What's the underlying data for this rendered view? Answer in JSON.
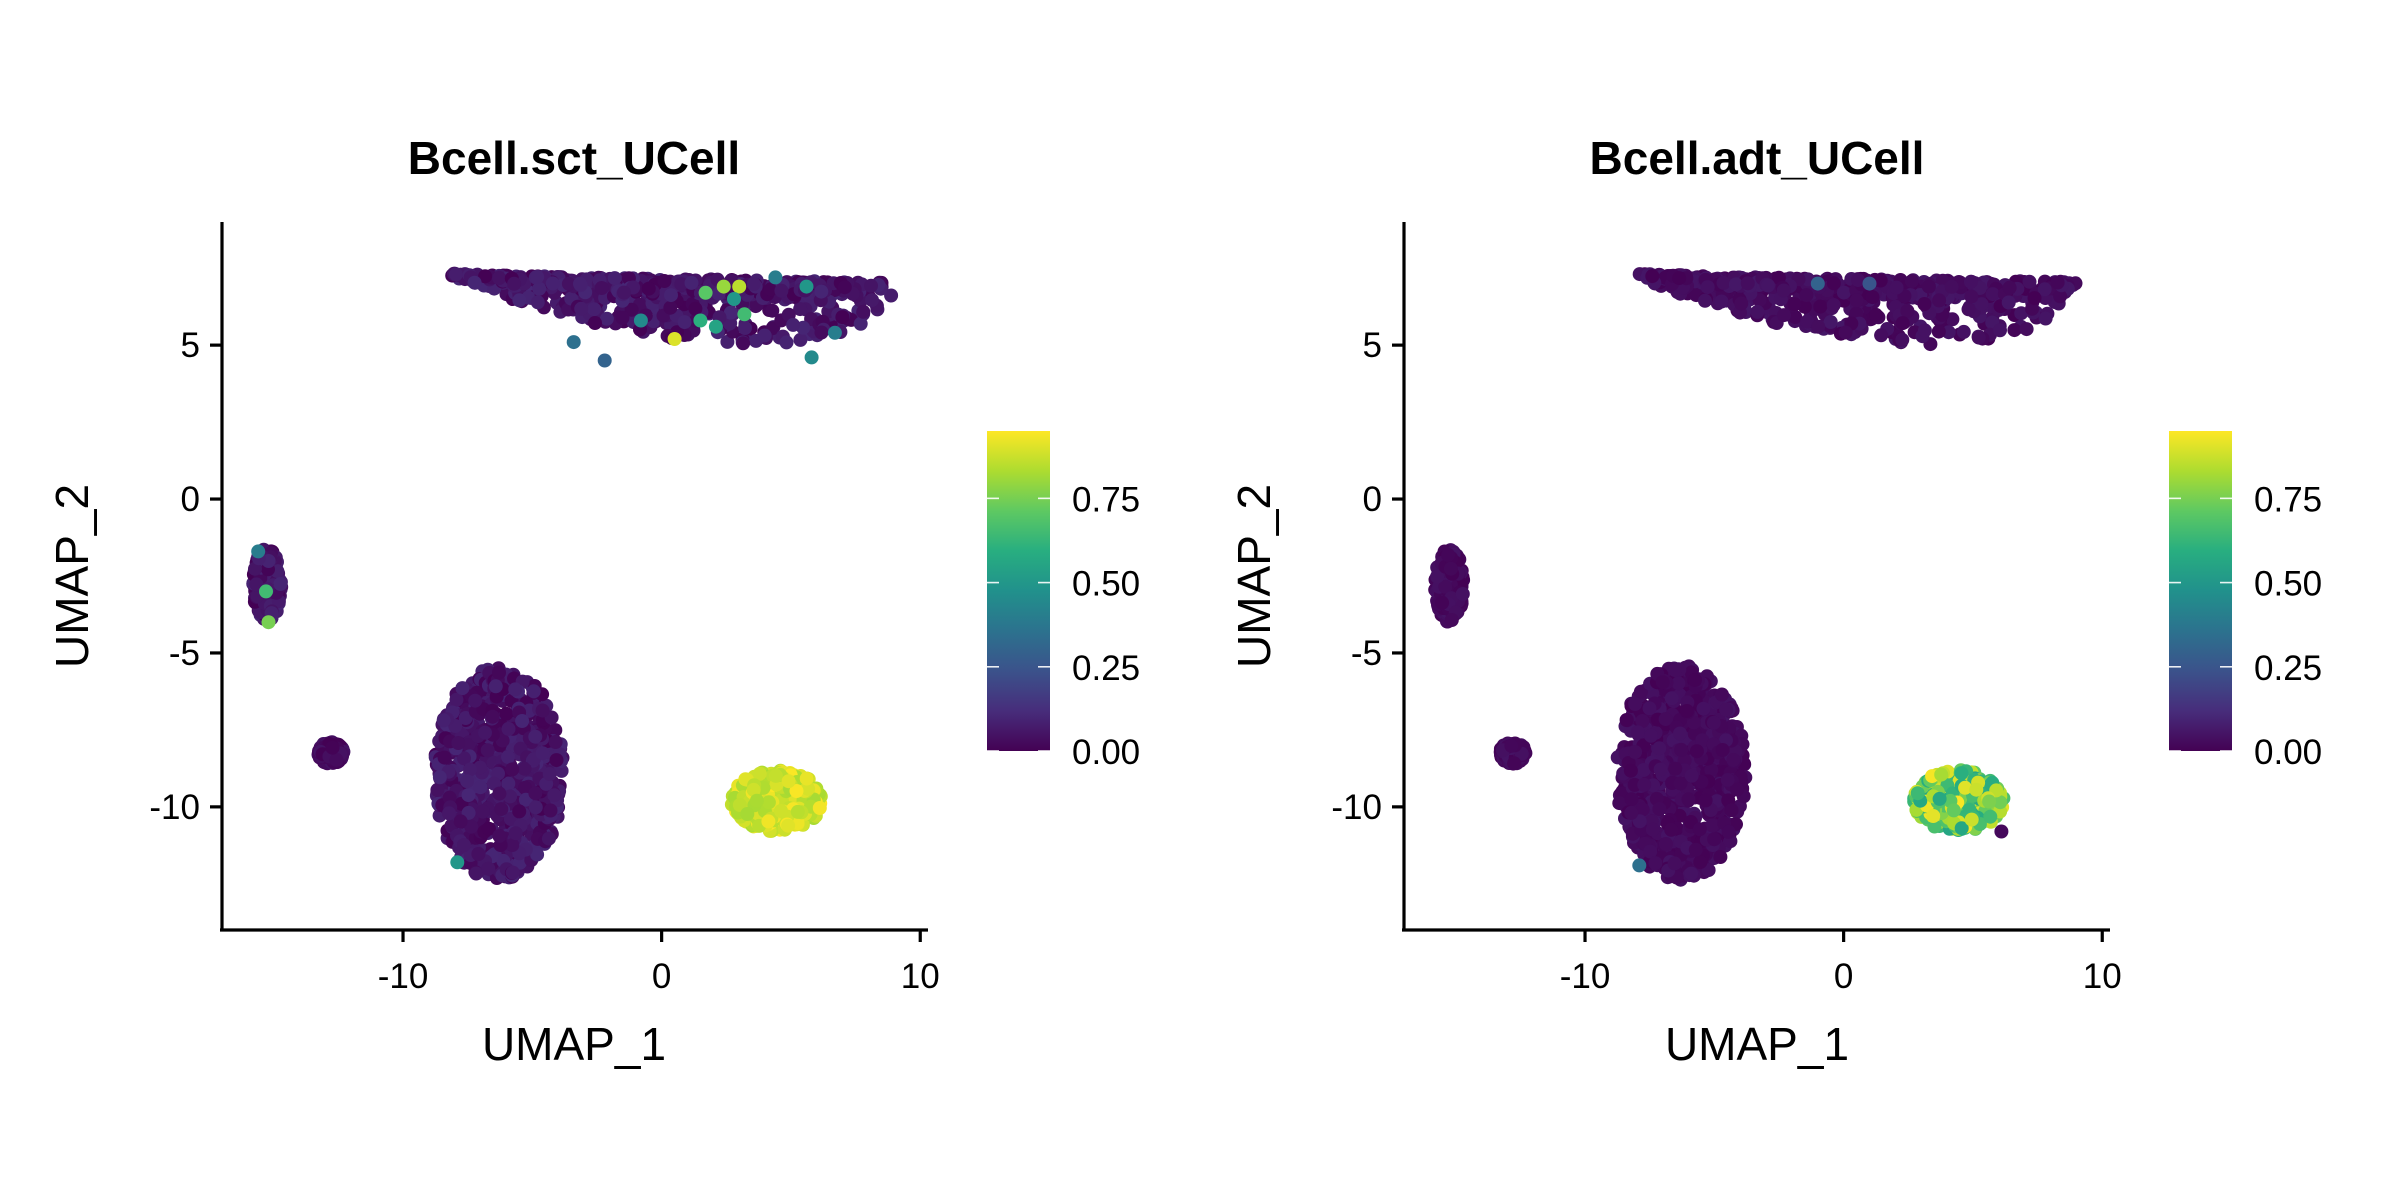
{
  "chart_data": [
    {
      "type": "scatter",
      "title": "Bcell.sct_UCell",
      "xlabel": "UMAP_1",
      "ylabel": "UMAP_2",
      "xlim": [
        -17,
        10.3
      ],
      "ylim": [
        -14,
        9
      ],
      "xticks": [
        -10,
        0,
        10
      ],
      "xtick_labels": [
        "-10",
        "0",
        "10"
      ],
      "yticks": [
        5,
        0,
        -5,
        -10
      ],
      "ytick_labels": [
        "5",
        "0",
        "-5",
        "-10"
      ],
      "color_scale": "viridis",
      "color_range": [
        0,
        0.95
      ],
      "colorbar_ticks": [
        0.75,
        0.5,
        0.25,
        0.0
      ],
      "colorbar_labels": [
        "0.75",
        "0.50",
        "0.25",
        "0.00"
      ],
      "grid": false,
      "legend": "colorbar-right",
      "clusters": [
        {
          "cells": "elongated cluster",
          "x_range": [
            -8.2,
            9
          ],
          "y_range": [
            4,
            7.4
          ],
          "score_range": [
            0,
            0.1
          ],
          "scattered_scores": [
            {
              "x": 3.0,
              "y": 6.9,
              "score": 0.85
            },
            {
              "x": 2.4,
              "y": 6.9,
              "score": 0.8
            },
            {
              "x": 1.7,
              "y": 6.7,
              "score": 0.7
            },
            {
              "x": 0.5,
              "y": 5.2,
              "score": 0.9
            },
            {
              "x": 1.5,
              "y": 5.8,
              "score": 0.6
            },
            {
              "x": 3.2,
              "y": 6.0,
              "score": 0.65
            },
            {
              "x": 2.1,
              "y": 5.6,
              "score": 0.55
            },
            {
              "x": 5.6,
              "y": 6.9,
              "score": 0.5
            },
            {
              "x": 4.4,
              "y": 7.2,
              "score": 0.4
            },
            {
              "x": -0.8,
              "y": 5.8,
              "score": 0.45
            },
            {
              "x": -3.4,
              "y": 5.1,
              "score": 0.35
            },
            {
              "x": 2.8,
              "y": 6.5,
              "score": 0.5
            },
            {
              "x": 6.7,
              "y": 5.4,
              "score": 0.4
            },
            {
              "x": 5.8,
              "y": 4.6,
              "score": 0.45
            },
            {
              "x": -2.2,
              "y": 4.5,
              "score": 0.3
            }
          ]
        },
        {
          "cells": "left small cluster",
          "x_range": [
            -15.8,
            -14.7
          ],
          "y_range": [
            -4,
            -1.6
          ],
          "score_range": [
            0,
            0.1
          ],
          "scattered_scores": [
            {
              "x": -15.3,
              "y": -3.0,
              "score": 0.65
            },
            {
              "x": -15.2,
              "y": -4.0,
              "score": 0.75
            },
            {
              "x": -15.6,
              "y": -1.7,
              "score": 0.4
            }
          ]
        },
        {
          "cells": "tiny cluster",
          "x_range": [
            -13.3,
            -12.3
          ],
          "y_range": [
            -8.6,
            -7.9
          ],
          "score_range": [
            0,
            0.05
          ]
        },
        {
          "cells": "lower-middle cluster",
          "x_range": [
            -8.8,
            -3.8
          ],
          "y_range": [
            -12.4,
            -5.4
          ],
          "score_range": [
            0,
            0.1
          ],
          "scattered_scores": [
            {
              "x": -7.9,
              "y": -11.8,
              "score": 0.5
            }
          ]
        },
        {
          "cells": "B cell cluster",
          "x_range": [
            2.7,
            6.2
          ],
          "y_range": [
            -10.8,
            -8.8
          ],
          "score_range": [
            0.82,
            0.95
          ]
        }
      ]
    },
    {
      "type": "scatter",
      "title": "Bcell.adt_UCell",
      "xlabel": "UMAP_1",
      "ylabel": "UMAP_2",
      "xlim": [
        -17,
        10.3
      ],
      "ylim": [
        -14,
        9
      ],
      "xticks": [
        -10,
        0,
        10
      ],
      "xtick_labels": [
        "-10",
        "0",
        "10"
      ],
      "yticks": [
        5,
        0,
        -5,
        -10
      ],
      "ytick_labels": [
        "5",
        "0",
        "-5",
        "-10"
      ],
      "color_scale": "viridis",
      "color_range": [
        0,
        0.95
      ],
      "colorbar_ticks": [
        0.75,
        0.5,
        0.25,
        0.0
      ],
      "colorbar_labels": [
        "0.75",
        "0.50",
        "0.25",
        "0.00"
      ],
      "grid": false,
      "legend": "colorbar-right",
      "clusters": [
        {
          "cells": "elongated cluster",
          "x_range": [
            -8.2,
            9
          ],
          "y_range": [
            4,
            7.4
          ],
          "score_range": [
            0,
            0.06
          ],
          "scattered_scores": [
            {
              "x": -1.0,
              "y": 7.0,
              "score": 0.3
            },
            {
              "x": 1.0,
              "y": 7.0,
              "score": 0.25
            }
          ]
        },
        {
          "cells": "left small cluster",
          "x_range": [
            -15.8,
            -14.7
          ],
          "y_range": [
            -4,
            -1.6
          ],
          "score_range": [
            0,
            0.05
          ]
        },
        {
          "cells": "tiny cluster",
          "x_range": [
            -13.3,
            -12.3
          ],
          "y_range": [
            -8.6,
            -7.9
          ],
          "score_range": [
            0,
            0.05
          ]
        },
        {
          "cells": "lower-middle cluster",
          "x_range": [
            -8.8,
            -3.8
          ],
          "y_range": [
            -12.4,
            -5.4
          ],
          "score_range": [
            0,
            0.05
          ],
          "scattered_scores": [
            {
              "x": -7.9,
              "y": -11.9,
              "score": 0.35
            }
          ]
        },
        {
          "cells": "B cell cluster",
          "x_range": [
            2.7,
            6.2
          ],
          "y_range": [
            -10.8,
            -8.8
          ],
          "score_range": [
            0.55,
            0.95
          ],
          "scattered_scores": [
            {
              "x": 6.1,
              "y": -10.8,
              "score": 0.02
            }
          ]
        }
      ]
    }
  ]
}
